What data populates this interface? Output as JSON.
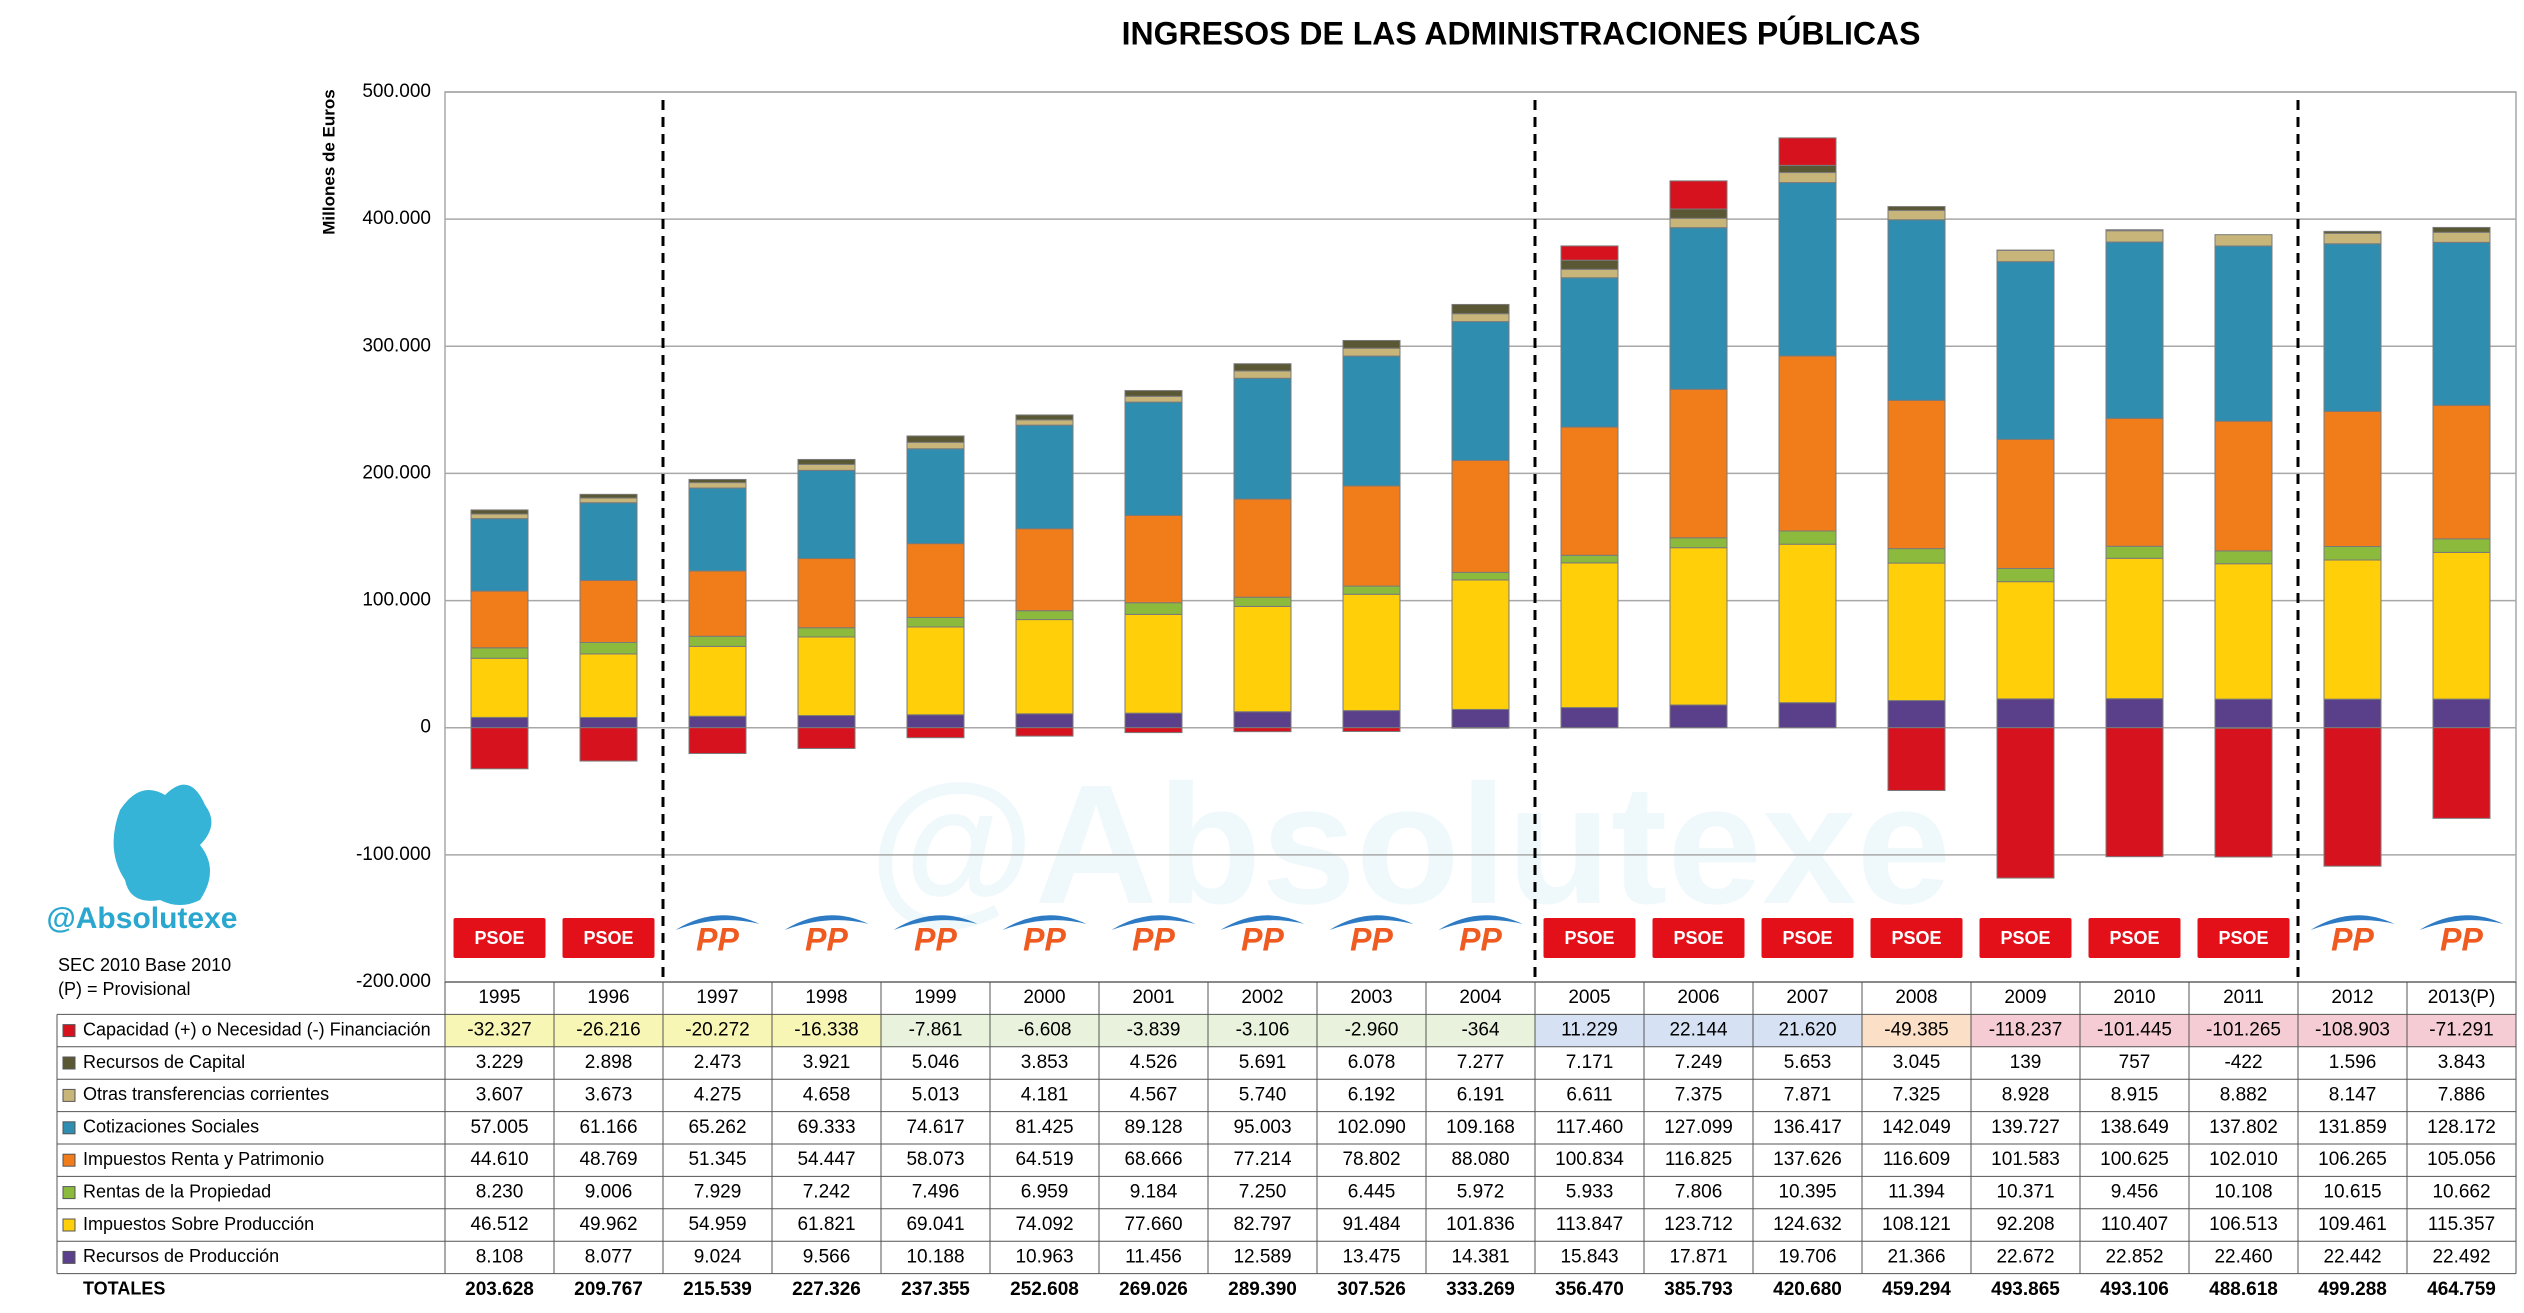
{
  "chart_data": {
    "type": "stacked-bar",
    "title": "INGRESOS DE LAS ADMINISTRACIONES PÚBLICAS",
    "y_label": "Millones de Euros",
    "brand": "@Absolutexe",
    "notes": [
      "SEC 2010 Base 2010",
      "(P) = Provisional"
    ],
    "totals_label": "TOTALES",
    "categories": [
      "1995",
      "1996",
      "1997",
      "1998",
      "1999",
      "2000",
      "2001",
      "2002",
      "2003",
      "2004",
      "2005",
      "2006",
      "2007",
      "2008",
      "2009",
      "2010",
      "2011",
      "2012",
      "2013(P)"
    ],
    "parties": [
      "PSOE",
      "PSOE",
      "PP",
      "PP",
      "PP",
      "PP",
      "PP",
      "PP",
      "PP",
      "PP",
      "PSOE",
      "PSOE",
      "PSOE",
      "PSOE",
      "PSOE",
      "PSOE",
      "PSOE",
      "PP",
      "PP"
    ],
    "ylim": [
      -200000,
      500000
    ],
    "yticks": [
      {
        "value": -200000,
        "label": "-200.000"
      },
      {
        "value": -100000,
        "label": "-100.000"
      },
      0,
      {
        "value": 100000,
        "label": "100.000"
      },
      {
        "value": 200000,
        "label": "200.000"
      },
      {
        "value": 300000,
        "label": "300.000"
      },
      {
        "value": 400000,
        "label": "400.000"
      },
      {
        "value": 500000,
        "label": "500.000"
      }
    ],
    "grid": true,
    "series": [
      {
        "name": "Capacidad (+) o Necesidad (-) Financiación",
        "color": "#d7121f",
        "values": [
          -32327,
          -26216,
          -20272,
          -16338,
          -7861,
          -6608,
          -3839,
          -3106,
          -2960,
          -364,
          11229,
          22144,
          21620,
          -49385,
          -118237,
          -101445,
          -101265,
          -108903,
          -71291
        ],
        "value_labels": [
          "-32.327",
          "-26.216",
          "-20.272",
          "-16.338",
          "-7.861",
          "-6.608",
          "-3.839",
          "-3.106",
          "-2.960",
          "-364",
          "11.229",
          "22.144",
          "21.620",
          "-49.385",
          "-118.237",
          "-101.445",
          "-101.265",
          "-108.903",
          "-71.291"
        ]
      },
      {
        "name": "Recursos de Capital",
        "color": "#5a5834",
        "values": [
          3229,
          2898,
          2473,
          3921,
          5046,
          3853,
          4526,
          5691,
          6078,
          7277,
          7171,
          7249,
          5653,
          3045,
          139,
          757,
          -422,
          1596,
          3843
        ],
        "value_labels": [
          "3.229",
          "2.898",
          "2.473",
          "3.921",
          "5.046",
          "3.853",
          "4.526",
          "5.691",
          "6.078",
          "7.277",
          "7.171",
          "7.249",
          "5.653",
          "3.045",
          "139",
          "757",
          "-422",
          "1.596",
          "3.843"
        ]
      },
      {
        "name": "Otras transferencias corrientes",
        "color": "#c8b57a",
        "values": [
          3607,
          3673,
          4275,
          4658,
          5013,
          4181,
          4567,
          5740,
          6192,
          6191,
          6611,
          7375,
          7871,
          7325,
          8928,
          8915,
          8882,
          8147,
          7886
        ],
        "value_labels": [
          "3.607",
          "3.673",
          "4.275",
          "4.658",
          "5.013",
          "4.181",
          "4.567",
          "5.740",
          "6.192",
          "6.191",
          "6.611",
          "7.375",
          "7.871",
          "7.325",
          "8.928",
          "8.915",
          "8.882",
          "8.147",
          "7.886"
        ]
      },
      {
        "name": "Cotizaciones Sociales",
        "color": "#2f8db0",
        "values": [
          57005,
          61166,
          65262,
          69333,
          74617,
          81425,
          89128,
          95003,
          102090,
          109168,
          117460,
          127099,
          136417,
          142049,
          139727,
          138649,
          137802,
          131859,
          128172
        ],
        "value_labels": [
          "57.005",
          "61.166",
          "65.262",
          "69.333",
          "74.617",
          "81.425",
          "89.128",
          "95.003",
          "102.090",
          "109.168",
          "117.460",
          "127.099",
          "136.417",
          "142.049",
          "139.727",
          "138.649",
          "137.802",
          "131.859",
          "128.172"
        ]
      },
      {
        "name": "Impuestos Renta y Patrimonio",
        "color": "#f07d1a",
        "values": [
          44610,
          48769,
          51345,
          54447,
          58073,
          64519,
          68666,
          77214,
          78802,
          88080,
          100834,
          116825,
          137626,
          116609,
          101583,
          100625,
          102010,
          106265,
          105056
        ],
        "value_labels": [
          "44.610",
          "48.769",
          "51.345",
          "54.447",
          "58.073",
          "64.519",
          "68.666",
          "77.214",
          "78.802",
          "88.080",
          "100.834",
          "116.825",
          "137.626",
          "116.609",
          "101.583",
          "100.625",
          "102.010",
          "106.265",
          "105.056"
        ]
      },
      {
        "name": "Rentas de la Propiedad",
        "color": "#8bba3c",
        "values": [
          8230,
          9006,
          7929,
          7242,
          7496,
          6959,
          9184,
          7250,
          6445,
          5972,
          5933,
          7806,
          10395,
          11394,
          10371,
          9456,
          10108,
          10615,
          10662
        ],
        "value_labels": [
          "8.230",
          "9.006",
          "7.929",
          "7.242",
          "7.496",
          "6.959",
          "9.184",
          "7.250",
          "6.445",
          "5.972",
          "5.933",
          "7.806",
          "10.395",
          "11.394",
          "10.371",
          "9.456",
          "10.108",
          "10.615",
          "10.662"
        ]
      },
      {
        "name": "Impuestos Sobre Producción",
        "color": "#ffcf0a",
        "values": [
          46512,
          49962,
          54959,
          61821,
          69041,
          74092,
          77660,
          82797,
          91484,
          101836,
          113847,
          123712,
          124632,
          108121,
          92208,
          110407,
          106513,
          109461,
          115357
        ],
        "value_labels": [
          "46.512",
          "49.962",
          "54.959",
          "61.821",
          "69.041",
          "74.092",
          "77.660",
          "82.797",
          "91.484",
          "101.836",
          "113.847",
          "123.712",
          "124.632",
          "108.121",
          "92.208",
          "110.407",
          "106.513",
          "109.461",
          "115.357"
        ]
      },
      {
        "name": "Recursos de Producción",
        "color": "#5a3f8a",
        "values": [
          8108,
          8077,
          9024,
          9566,
          10188,
          10963,
          11456,
          12589,
          13475,
          14381,
          15843,
          17871,
          19706,
          21366,
          22672,
          22852,
          22460,
          22442,
          22492
        ],
        "value_labels": [
          "8.108",
          "8.077",
          "9.024",
          "9.566",
          "10.188",
          "10.963",
          "11.456",
          "12.589",
          "13.475",
          "14.381",
          "15.843",
          "17.871",
          "19.706",
          "21.366",
          "22.672",
          "22.852",
          "22.460",
          "22.442",
          "22.492"
        ]
      }
    ],
    "totals": {
      "values": [
        203628,
        209767,
        215539,
        227326,
        237355,
        252608,
        269026,
        289390,
        307526,
        333269,
        356470,
        385793,
        420680,
        459294,
        493865,
        493106,
        488618,
        499288,
        464759
      ],
      "value_labels": [
        "203.628",
        "209.767",
        "215.539",
        "227.326",
        "237.355",
        "252.608",
        "269.026",
        "289.390",
        "307.526",
        "333.269",
        "356.470",
        "385.793",
        "420.680",
        "459.294",
        "493.865",
        "493.106",
        "488.618",
        "499.288",
        "464.759"
      ]
    }
  }
}
